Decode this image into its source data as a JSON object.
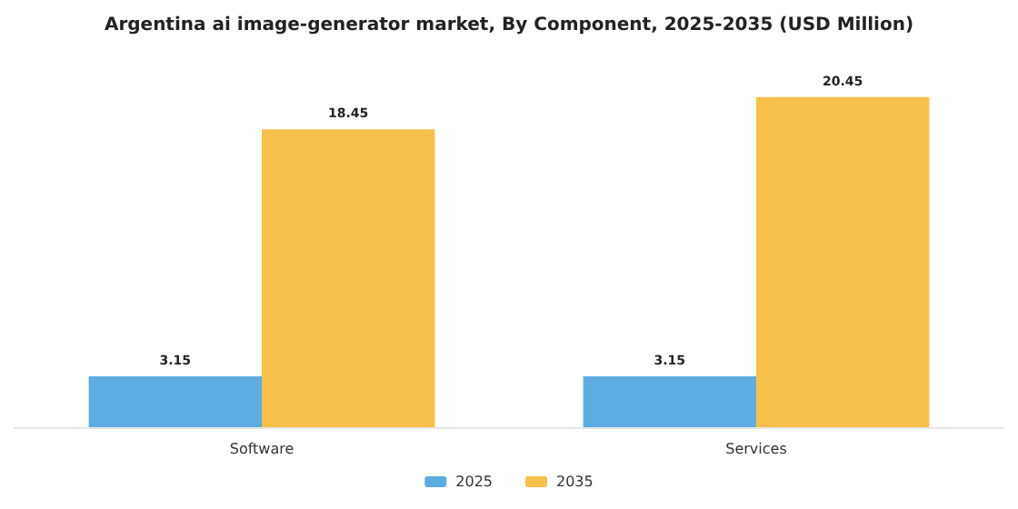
{
  "chart_data": {
    "type": "bar",
    "title": "Argentina ai image-generator market, By Component, 2025-2035 (USD Million)",
    "categories": [
      "Software",
      "Services"
    ],
    "series": [
      {
        "name": "2025",
        "color": "#5dade2",
        "values": [
          3.15,
          3.15
        ]
      },
      {
        "name": "2035",
        "color": "#f7c04a",
        "values": [
          18.45,
          20.45
        ]
      }
    ],
    "data_labels": true,
    "grid": false,
    "legend": "bottom"
  }
}
